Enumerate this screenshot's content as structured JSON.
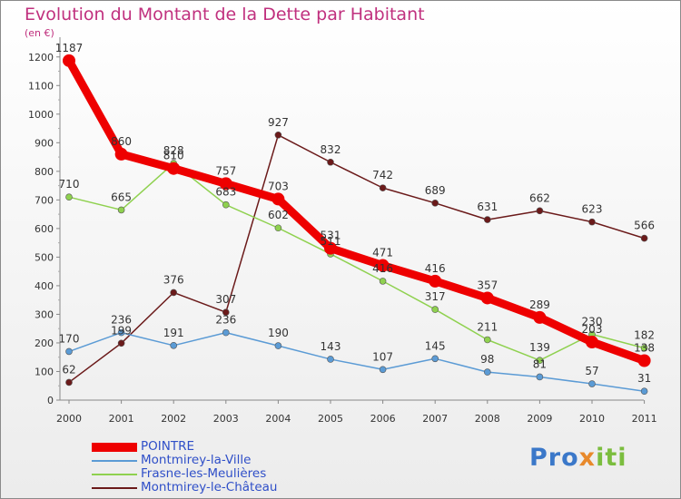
{
  "title": "Evolution du Montant de la Dette par Habitant",
  "unit_label": "(en €)",
  "brand": {
    "part1": "Pro",
    "part2": "x",
    "part3": "iti"
  },
  "chart_data": {
    "type": "line",
    "x": [
      "2000",
      "2001",
      "2002",
      "2003",
      "2004",
      "2005",
      "2006",
      "2007",
      "2008",
      "2009",
      "2010",
      "2011"
    ],
    "ylim": [
      0,
      1250
    ],
    "yticks": [
      0,
      100,
      200,
      300,
      400,
      500,
      600,
      700,
      800,
      900,
      1000,
      1100,
      1200
    ],
    "grid": false,
    "legend_position": "bottom-left",
    "series": [
      {
        "name": "POINTRE",
        "color": "#ee0000",
        "values": [
          1187,
          860,
          810,
          757,
          703,
          531,
          471,
          416,
          357,
          289,
          203,
          138
        ]
      },
      {
        "name": "Montmirey-la-Ville",
        "color": "#5b9bd5",
        "values": [
          170,
          236,
          191,
          236,
          190,
          143,
          107,
          145,
          98,
          81,
          57,
          31
        ]
      },
      {
        "name": "Frasne-les-Meulières",
        "color": "#8fd14f",
        "values": [
          710,
          665,
          828,
          683,
          602,
          511,
          416,
          317,
          211,
          139,
          230,
          182
        ]
      },
      {
        "name": "Montmirey-le-Château",
        "color": "#6b1a1a",
        "values": [
          62,
          199,
          376,
          307,
          927,
          832,
          742,
          689,
          631,
          662,
          623,
          566
        ]
      }
    ],
    "data_labels": [
      [
        "1187",
        "860",
        "810",
        "757",
        "703",
        "531",
        "471",
        "416",
        "357",
        "289",
        "203",
        "138"
      ],
      [
        "170",
        "236",
        "191",
        "236",
        "190",
        "143",
        "107",
        "145",
        "98",
        "81",
        "57",
        "31"
      ],
      [
        "710",
        "665",
        "828",
        "683",
        "602",
        "511",
        "416",
        "317",
        "211",
        "139",
        "230",
        "182"
      ],
      [
        "62",
        "199",
        "376",
        "307",
        "927",
        "832",
        "742",
        "689",
        "631",
        "662",
        "623",
        "566"
      ]
    ]
  }
}
